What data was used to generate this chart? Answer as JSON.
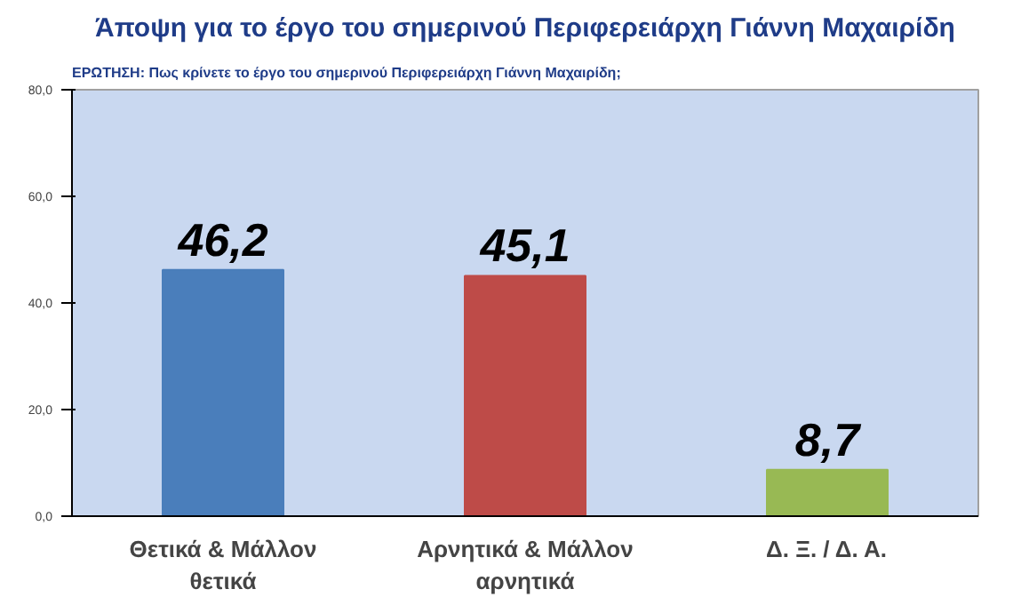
{
  "chart_data": {
    "type": "bar",
    "title": "Άποψη για το έργο του σημερινού Περιφερειάρχη Γιάννη Μαχαιρίδη",
    "subtitle": "ΕΡΩΤΗΣΗ: Πως κρίνετε το έργο του σημερινού Περιφερειάρχη Γιάννη Μαχαιρίδη;",
    "categories": [
      "Θετικά & Μάλλον θετικά",
      "Αρνητικά & Μάλλον αρνητικά",
      "Δ. Ξ. / Δ. Α."
    ],
    "values": [
      46.2,
      45.1,
      8.7
    ],
    "colors": [
      "#4a7ebb",
      "#be4b48",
      "#98b954"
    ],
    "value_labels": [
      "46,2",
      "45,1",
      "8,7"
    ],
    "ylim": [
      0,
      80
    ],
    "yticks": [
      {
        "value": 0,
        "label": "0,0"
      },
      {
        "value": 20,
        "label": "20,0"
      },
      {
        "value": 40,
        "label": "40,0"
      },
      {
        "value": 60,
        "label": "60,0"
      },
      {
        "value": 80,
        "label": "80,0"
      }
    ],
    "grid": false
  }
}
